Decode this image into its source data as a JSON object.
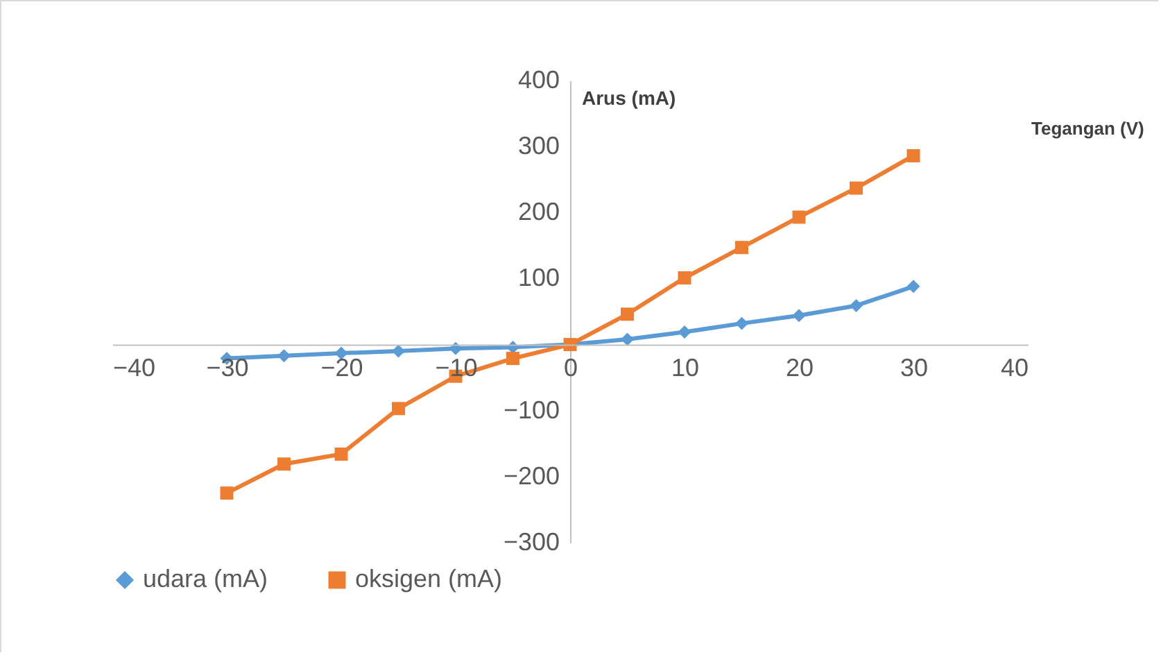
{
  "chart_data": {
    "type": "line",
    "xlabel": "Tegangan (V)",
    "ylabel": "Arus (mA)",
    "x": [
      -30,
      -25,
      -20,
      -15,
      -10,
      -5,
      0,
      5,
      10,
      15,
      20,
      25,
      30
    ],
    "series": [
      {
        "name": "udara (mA)",
        "color": "#5b9bd5",
        "marker": "diamond",
        "values": [
          -21,
          -17,
          -13,
          -10,
          -6,
          -4,
          0,
          8,
          19,
          32,
          44,
          59,
          88
        ]
      },
      {
        "name": "oksigen (mA)",
        "color": "#ed7d31",
        "marker": "square",
        "values": [
          -225,
          -181,
          -166,
          -97,
          -48,
          -21,
          0,
          46,
          101,
          147,
          193,
          237,
          286
        ]
      }
    ],
    "xlim": [
      -40,
      40
    ],
    "xticks": [
      -40,
      -30,
      -20,
      -10,
      0,
      10,
      20,
      30,
      40
    ],
    "ylim": [
      -300,
      400
    ],
    "yticks": [
      -300,
      -200,
      -100,
      100,
      200,
      300,
      400
    ],
    "grid": false,
    "legend": "bottom",
    "line_style": "solid"
  }
}
